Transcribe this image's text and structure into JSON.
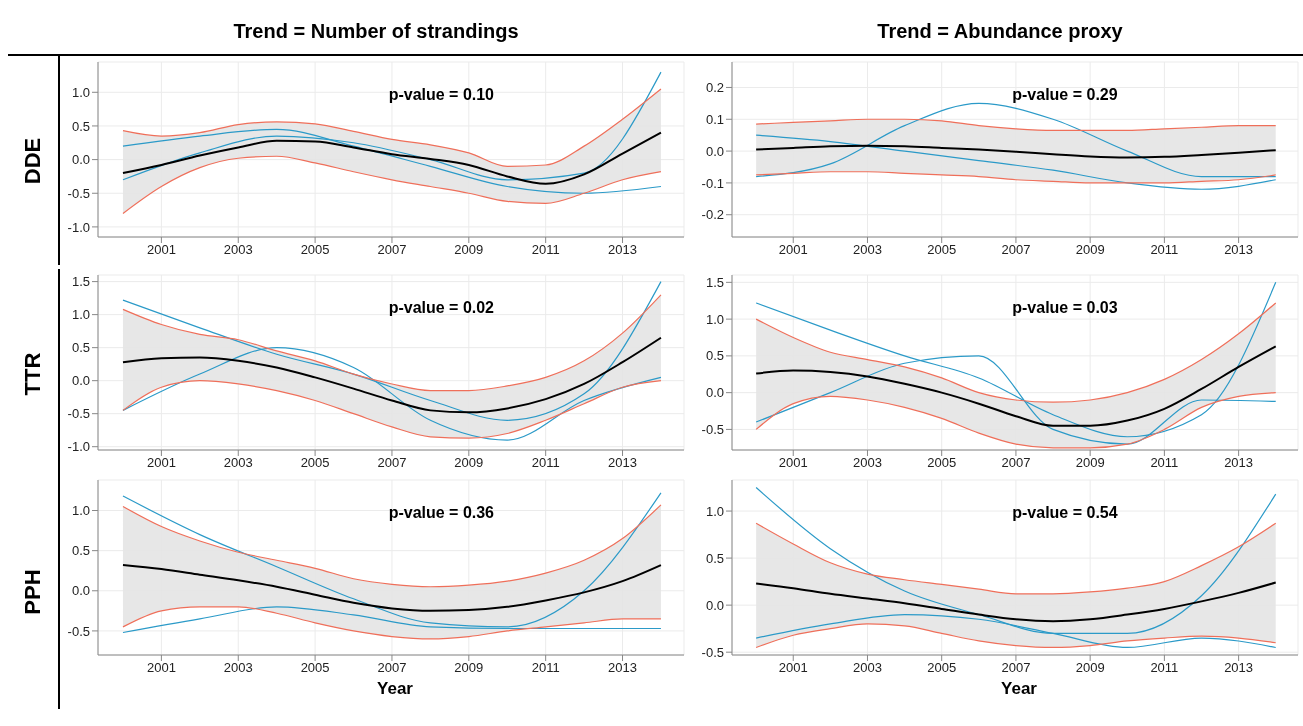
{
  "chart_data": [
    {
      "type": "line",
      "title": "Trend = Number of strandings",
      "ylabel": "DDE",
      "annotations": [
        "p-value = 0.10"
      ],
      "grid": true,
      "xlim": [
        1999.35,
        2014.6
      ],
      "xticks": [
        2001,
        2003,
        2005,
        2007,
        2009,
        2011,
        2013
      ],
      "ylim": [
        -1.15,
        1.45
      ],
      "yticks": [
        {
          "value": -1,
          "label": "-1.0"
        },
        {
          "value": -0.5,
          "label": "-0.5"
        },
        {
          "value": 0,
          "label": "0.0"
        },
        {
          "value": 0.5,
          "label": "0.5"
        },
        {
          "value": 1,
          "label": "1.0"
        }
      ],
      "x": [
        2000,
        2001,
        2002,
        2003,
        2004,
        2005,
        2006,
        2007,
        2008,
        2009,
        2010,
        2011,
        2012,
        2013,
        2014
      ],
      "series": [
        {
          "color": "#2b9ac8",
          "x": [
            2000,
            2002,
            2004,
            2006,
            2008,
            2010,
            2012,
            2014
          ],
          "values": [
            -0.3,
            0.1,
            0.35,
            0.25,
            0.0,
            -0.3,
            -0.2,
            1.3
          ]
        },
        {
          "color": "#2b9ac8",
          "x": [
            2000,
            2002,
            2004,
            2006,
            2008,
            2010,
            2012,
            2014
          ],
          "values": [
            0.2,
            0.35,
            0.45,
            0.2,
            -0.1,
            -0.4,
            -0.5,
            -0.4
          ]
        },
        {
          "color": "#ef6f5a",
          "values": [
            0.43,
            0.35,
            0.4,
            0.52,
            0.56,
            0.53,
            0.42,
            0.3,
            0.22,
            0.1,
            -0.1,
            -0.08,
            0.2,
            0.6,
            1.05
          ]
        },
        {
          "color": "#ef6f5a",
          "values": [
            -0.8,
            -0.4,
            -0.12,
            0.02,
            0.05,
            -0.05,
            -0.18,
            -0.3,
            -0.4,
            -0.5,
            -0.62,
            -0.65,
            -0.5,
            -0.3,
            -0.18
          ]
        },
        {
          "color": "#000000",
          "values": [
            -0.2,
            -0.08,
            0.06,
            0.18,
            0.28,
            0.27,
            0.18,
            0.08,
            0.01,
            -0.08,
            -0.25,
            -0.36,
            -0.22,
            0.09,
            0.4
          ],
          "lower": [
            -0.8,
            -0.4,
            -0.12,
            0.02,
            0.05,
            -0.05,
            -0.18,
            -0.3,
            -0.4,
            -0.5,
            -0.62,
            -0.65,
            -0.5,
            -0.3,
            -0.18
          ],
          "upper": [
            0.43,
            0.35,
            0.4,
            0.52,
            0.56,
            0.53,
            0.42,
            0.3,
            0.22,
            0.1,
            -0.1,
            -0.08,
            0.2,
            0.6,
            1.05
          ]
        }
      ]
    },
    {
      "type": "line",
      "title": "Trend = Abundance proxy",
      "annotations": [
        "p-value = 0.29"
      ],
      "grid": true,
      "xlim": [
        1999.35,
        2014.6
      ],
      "xticks": [
        2001,
        2003,
        2005,
        2007,
        2009,
        2011,
        2013
      ],
      "ylim": [
        -0.27,
        0.28
      ],
      "yticks": [
        -0.2,
        -0.1,
        {
          "value": 0,
          "label": "0.0"
        },
        0.1,
        0.2
      ],
      "x": [
        2000,
        2001,
        2002,
        2003,
        2004,
        2005,
        2006,
        2007,
        2008,
        2009,
        2010,
        2011,
        2012,
        2013,
        2014
      ],
      "series": [
        {
          "color": "#2b9ac8",
          "x": [
            2000,
            2002,
            2004,
            2006,
            2008,
            2010,
            2012,
            2014
          ],
          "values": [
            -0.08,
            -0.04,
            0.08,
            0.15,
            0.1,
            0.0,
            -0.08,
            -0.08
          ]
        },
        {
          "color": "#2b9ac8",
          "x": [
            2000,
            2002,
            2004,
            2006,
            2008,
            2010,
            2012,
            2014
          ],
          "values": [
            0.05,
            0.03,
            0.0,
            -0.03,
            -0.06,
            -0.1,
            -0.12,
            -0.09
          ]
        },
        {
          "color": "#ef6f5a",
          "values": [
            0.085,
            0.09,
            0.095,
            0.1,
            0.1,
            0.095,
            0.08,
            0.07,
            0.065,
            0.065,
            0.065,
            0.07,
            0.075,
            0.08,
            0.08
          ]
        },
        {
          "color": "#ef6f5a",
          "values": [
            -0.075,
            -0.07,
            -0.065,
            -0.065,
            -0.07,
            -0.075,
            -0.08,
            -0.09,
            -0.095,
            -0.1,
            -0.1,
            -0.1,
            -0.095,
            -0.09,
            -0.075
          ]
        },
        {
          "color": "#000000",
          "values": [
            0.005,
            0.01,
            0.015,
            0.017,
            0.015,
            0.01,
            0.005,
            -0.002,
            -0.01,
            -0.017,
            -0.02,
            -0.018,
            -0.012,
            -0.005,
            0.003
          ],
          "lower": [
            -0.075,
            -0.07,
            -0.065,
            -0.065,
            -0.07,
            -0.075,
            -0.08,
            -0.09,
            -0.095,
            -0.1,
            -0.1,
            -0.1,
            -0.095,
            -0.09,
            -0.075
          ],
          "upper": [
            0.085,
            0.09,
            0.095,
            0.1,
            0.1,
            0.095,
            0.08,
            0.07,
            0.065,
            0.065,
            0.065,
            0.07,
            0.075,
            0.08,
            0.08
          ]
        }
      ]
    },
    {
      "type": "line",
      "ylabel": "TTR",
      "annotations": [
        "p-value = 0.02"
      ],
      "grid": true,
      "xlim": [
        1999.35,
        2014.6
      ],
      "xticks": [
        2001,
        2003,
        2005,
        2007,
        2009,
        2011,
        2013
      ],
      "ylim": [
        -1.05,
        1.6
      ],
      "yticks": [
        {
          "value": -1,
          "label": "-1.0"
        },
        {
          "value": -0.5,
          "label": "-0.5"
        },
        {
          "value": 0,
          "label": "0.0"
        },
        {
          "value": 0.5,
          "label": "0.5"
        },
        {
          "value": 1,
          "label": "1.0"
        },
        1.5
      ],
      "x": [
        2000,
        2001,
        2002,
        2003,
        2004,
        2005,
        2006,
        2007,
        2008,
        2009,
        2010,
        2011,
        2012,
        2013,
        2014
      ],
      "series": [
        {
          "color": "#2b9ac8",
          "x": [
            2000,
            2002,
            2004,
            2006,
            2008,
            2010,
            2012,
            2014
          ],
          "values": [
            1.22,
            0.8,
            0.4,
            0.1,
            -0.3,
            -0.6,
            -0.2,
            1.5
          ]
        },
        {
          "color": "#2b9ac8",
          "x": [
            2000,
            2002,
            2004,
            2006,
            2008,
            2010,
            2012,
            2014
          ],
          "values": [
            -0.45,
            0.1,
            0.5,
            0.2,
            -0.6,
            -0.9,
            -0.3,
            0.05
          ]
        },
        {
          "color": "#ef6f5a",
          "values": [
            1.08,
            0.85,
            0.7,
            0.62,
            0.45,
            0.3,
            0.1,
            -0.05,
            -0.15,
            -0.15,
            -0.08,
            0.05,
            0.3,
            0.72,
            1.3
          ]
        },
        {
          "color": "#ef6f5a",
          "values": [
            -0.45,
            -0.1,
            0.0,
            -0.05,
            -0.15,
            -0.3,
            -0.5,
            -0.7,
            -0.85,
            -0.87,
            -0.8,
            -0.6,
            -0.35,
            -0.1,
            0.0
          ]
        },
        {
          "color": "#000000",
          "values": [
            0.28,
            0.34,
            0.35,
            0.3,
            0.2,
            0.05,
            -0.12,
            -0.3,
            -0.45,
            -0.48,
            -0.42,
            -0.28,
            -0.05,
            0.28,
            0.65
          ],
          "lower": [
            -0.45,
            -0.1,
            0.0,
            -0.05,
            -0.15,
            -0.3,
            -0.5,
            -0.7,
            -0.85,
            -0.87,
            -0.8,
            -0.6,
            -0.35,
            -0.1,
            0.0
          ],
          "upper": [
            1.08,
            0.85,
            0.7,
            0.62,
            0.45,
            0.3,
            0.1,
            -0.05,
            -0.15,
            -0.15,
            -0.08,
            0.05,
            0.3,
            0.72,
            1.3
          ]
        }
      ]
    },
    {
      "type": "line",
      "annotations": [
        "p-value = 0.03"
      ],
      "grid": true,
      "xlim": [
        1999.35,
        2014.6
      ],
      "xticks": [
        2001,
        2003,
        2005,
        2007,
        2009,
        2011,
        2013
      ],
      "ylim": [
        -0.78,
        1.6
      ],
      "yticks": [
        {
          "value": -0.5,
          "label": "-0.5"
        },
        {
          "value": 0,
          "label": "0.0"
        },
        {
          "value": 0.5,
          "label": "0.5"
        },
        {
          "value": 1,
          "label": "1.0"
        },
        1.5
      ],
      "x": [
        2000,
        2001,
        2002,
        2003,
        2004,
        2005,
        2006,
        2007,
        2008,
        2009,
        2010,
        2011,
        2012,
        2013,
        2014
      ],
      "series": [
        {
          "color": "#2b9ac8",
          "x": [
            2000,
            2002,
            2004,
            2006,
            2008,
            2010,
            2012,
            2014
          ],
          "values": [
            1.22,
            0.85,
            0.5,
            0.2,
            -0.3,
            -0.6,
            -0.3,
            1.5
          ]
        },
        {
          "color": "#2b9ac8",
          "x": [
            2000,
            2002,
            2004,
            2006,
            2008,
            2010,
            2012,
            2014
          ],
          "values": [
            -0.4,
            0.0,
            0.4,
            0.5,
            -0.5,
            -0.7,
            -0.1,
            -0.12
          ]
        },
        {
          "color": "#ef6f5a",
          "values": [
            1.0,
            0.75,
            0.55,
            0.45,
            0.35,
            0.2,
            0.0,
            -0.1,
            -0.13,
            -0.1,
            0.0,
            0.18,
            0.45,
            0.8,
            1.22
          ]
        },
        {
          "color": "#ef6f5a",
          "values": [
            -0.5,
            -0.15,
            -0.05,
            -0.1,
            -0.2,
            -0.35,
            -0.55,
            -0.7,
            -0.75,
            -0.75,
            -0.7,
            -0.5,
            -0.2,
            -0.05,
            0.0
          ]
        },
        {
          "color": "#000000",
          "values": [
            0.26,
            0.3,
            0.28,
            0.22,
            0.12,
            0.0,
            -0.15,
            -0.32,
            -0.45,
            -0.45,
            -0.38,
            -0.22,
            0.05,
            0.35,
            0.63
          ],
          "lower": [
            -0.5,
            -0.15,
            -0.05,
            -0.1,
            -0.2,
            -0.35,
            -0.55,
            -0.7,
            -0.75,
            -0.75,
            -0.7,
            -0.5,
            -0.2,
            -0.05,
            0.0
          ],
          "upper": [
            1.0,
            0.75,
            0.55,
            0.45,
            0.35,
            0.2,
            0.0,
            -0.1,
            -0.13,
            -0.1,
            0.0,
            0.18,
            0.45,
            0.8,
            1.22
          ]
        }
      ]
    },
    {
      "type": "line",
      "ylabel": "PPH",
      "xlabel": "Year",
      "annotations": [
        "p-value = 0.36"
      ],
      "grid": true,
      "xlim": [
        1999.35,
        2014.6
      ],
      "xticks": [
        2001,
        2003,
        2005,
        2007,
        2009,
        2011,
        2013
      ],
      "ylim": [
        -0.8,
        1.38
      ],
      "yticks": [
        {
          "value": -0.5,
          "label": "-0.5"
        },
        {
          "value": 0,
          "label": "0.0"
        },
        {
          "value": 0.5,
          "label": "0.5"
        },
        {
          "value": 1,
          "label": "1.0"
        }
      ],
      "x": [
        2000,
        2001,
        2002,
        2003,
        2004,
        2005,
        2006,
        2007,
        2008,
        2009,
        2010,
        2011,
        2012,
        2013,
        2014
      ],
      "series": [
        {
          "color": "#2b9ac8",
          "x": [
            2000,
            2002,
            2004,
            2006,
            2008,
            2010,
            2012,
            2014
          ],
          "values": [
            1.18,
            0.7,
            0.3,
            -0.1,
            -0.4,
            -0.45,
            0.0,
            1.22
          ]
        },
        {
          "color": "#2b9ac8",
          "x": [
            2000,
            2002,
            2004,
            2006,
            2008,
            2010,
            2012,
            2014
          ],
          "values": [
            -0.52,
            -0.35,
            -0.2,
            -0.3,
            -0.45,
            -0.47,
            -0.47,
            -0.47
          ]
        },
        {
          "color": "#ef6f5a",
          "values": [
            1.05,
            0.8,
            0.62,
            0.48,
            0.38,
            0.28,
            0.15,
            0.08,
            0.05,
            0.07,
            0.12,
            0.22,
            0.38,
            0.65,
            1.07
          ]
        },
        {
          "color": "#ef6f5a",
          "values": [
            -0.45,
            -0.25,
            -0.2,
            -0.2,
            -0.28,
            -0.4,
            -0.5,
            -0.57,
            -0.6,
            -0.57,
            -0.5,
            -0.45,
            -0.4,
            -0.35,
            -0.35
          ]
        },
        {
          "color": "#000000",
          "values": [
            0.32,
            0.27,
            0.2,
            0.13,
            0.05,
            -0.05,
            -0.15,
            -0.22,
            -0.25,
            -0.24,
            -0.2,
            -0.12,
            -0.02,
            0.12,
            0.32
          ],
          "lower": [
            -0.45,
            -0.25,
            -0.2,
            -0.2,
            -0.28,
            -0.4,
            -0.5,
            -0.57,
            -0.6,
            -0.57,
            -0.5,
            -0.45,
            -0.4,
            -0.35,
            -0.35
          ],
          "upper": [
            1.05,
            0.8,
            0.62,
            0.48,
            0.38,
            0.28,
            0.15,
            0.08,
            0.05,
            0.07,
            0.12,
            0.22,
            0.38,
            0.65,
            1.07
          ]
        }
      ]
    },
    {
      "type": "line",
      "xlabel": "Year",
      "annotations": [
        "p-value = 0.54"
      ],
      "grid": true,
      "xlim": [
        1999.35,
        2014.6
      ],
      "xticks": [
        2001,
        2003,
        2005,
        2007,
        2009,
        2011,
        2013
      ],
      "ylim": [
        -0.53,
        1.33
      ],
      "yticks": [
        {
          "value": -0.5,
          "label": "-0.5"
        },
        {
          "value": 0,
          "label": "0.0"
        },
        {
          "value": 0.5,
          "label": "0.5"
        },
        {
          "value": 1,
          "label": "1.0"
        }
      ],
      "x": [
        2000,
        2001,
        2002,
        2003,
        2004,
        2005,
        2006,
        2007,
        2008,
        2009,
        2010,
        2011,
        2012,
        2013,
        2014
      ],
      "series": [
        {
          "color": "#2b9ac8",
          "x": [
            2000,
            2002,
            2004,
            2006,
            2008,
            2010,
            2012,
            2014
          ],
          "values": [
            1.25,
            0.6,
            0.15,
            -0.1,
            -0.3,
            -0.3,
            0.1,
            1.18
          ]
        },
        {
          "color": "#2b9ac8",
          "x": [
            2000,
            2002,
            2004,
            2006,
            2008,
            2010,
            2012,
            2014
          ],
          "values": [
            -0.35,
            -0.2,
            -0.1,
            -0.15,
            -0.3,
            -0.45,
            -0.35,
            -0.45
          ]
        },
        {
          "color": "#ef6f5a",
          "values": [
            0.87,
            0.65,
            0.45,
            0.33,
            0.27,
            0.22,
            0.17,
            0.12,
            0.12,
            0.14,
            0.18,
            0.25,
            0.42,
            0.62,
            0.87
          ]
        },
        {
          "color": "#ef6f5a",
          "values": [
            -0.45,
            -0.32,
            -0.25,
            -0.2,
            -0.22,
            -0.3,
            -0.38,
            -0.43,
            -0.45,
            -0.43,
            -0.38,
            -0.35,
            -0.33,
            -0.35,
            -0.4
          ]
        },
        {
          "color": "#000000",
          "values": [
            0.23,
            0.18,
            0.12,
            0.07,
            0.02,
            -0.04,
            -0.1,
            -0.15,
            -0.17,
            -0.15,
            -0.1,
            -0.04,
            0.04,
            0.13,
            0.24
          ],
          "lower": [
            -0.45,
            -0.32,
            -0.25,
            -0.2,
            -0.22,
            -0.3,
            -0.38,
            -0.43,
            -0.45,
            -0.43,
            -0.38,
            -0.35,
            -0.33,
            -0.35,
            -0.4
          ],
          "upper": [
            0.87,
            0.65,
            0.45,
            0.33,
            0.27,
            0.22,
            0.17,
            0.12,
            0.12,
            0.14,
            0.18,
            0.25,
            0.42,
            0.62,
            0.87
          ]
        }
      ]
    }
  ]
}
